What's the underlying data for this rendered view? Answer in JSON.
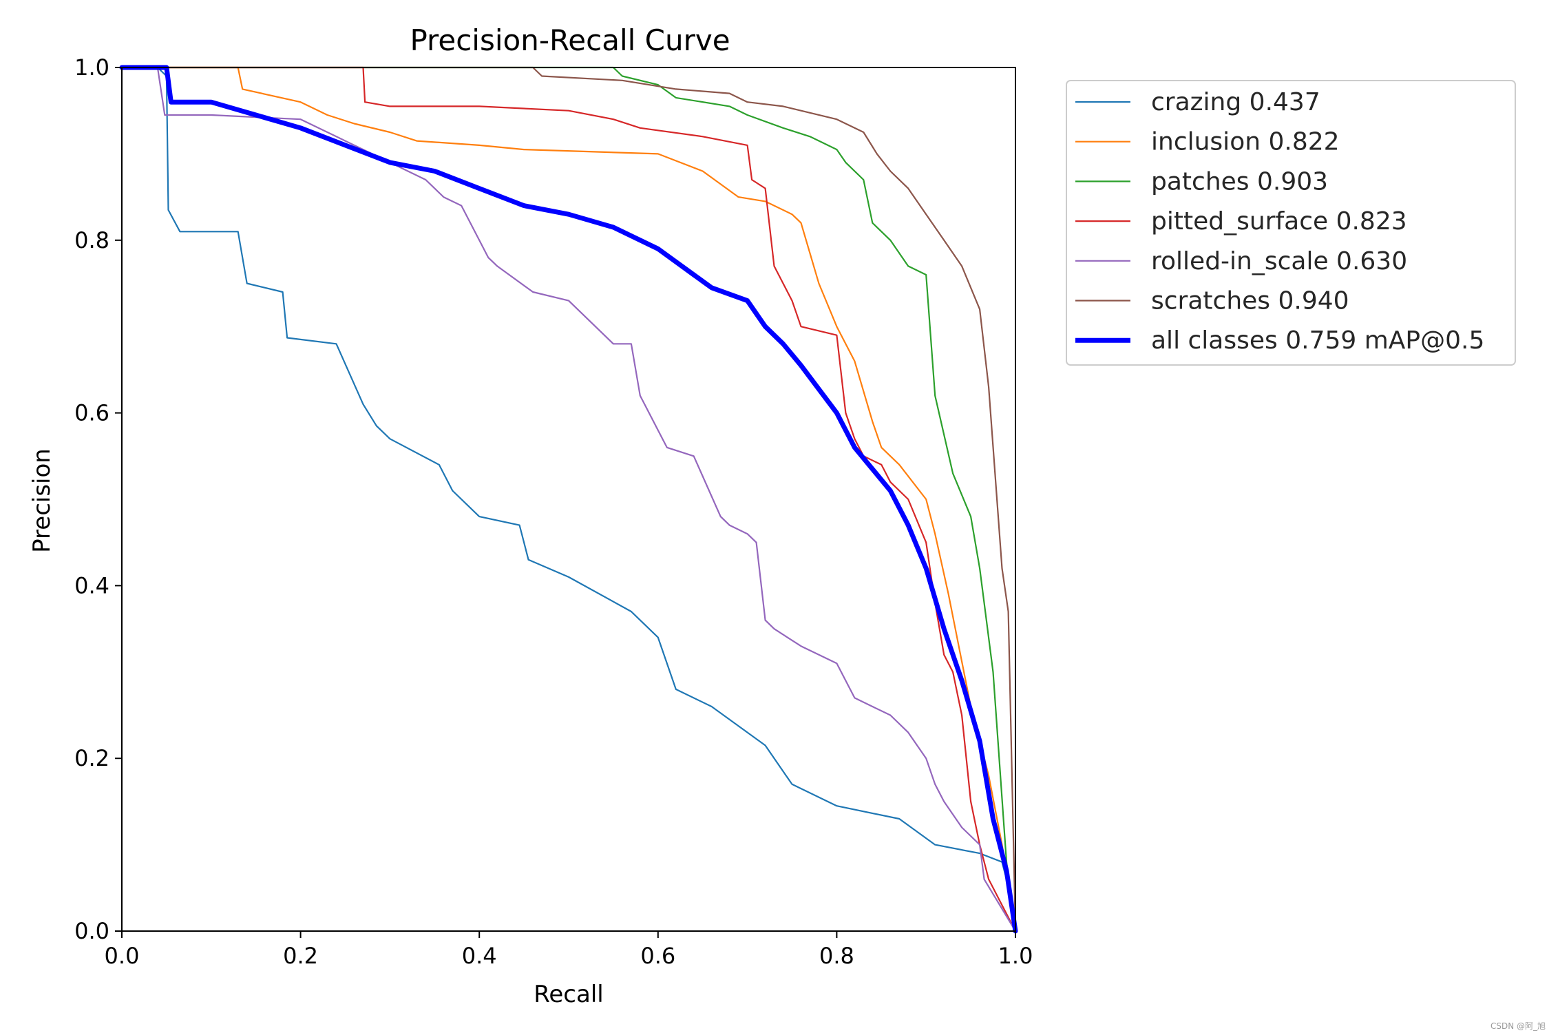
{
  "chart_data": {
    "type": "line",
    "title": "Precision-Recall Curve",
    "xlabel": "Recall",
    "ylabel": "Precision",
    "xlim": [
      0,
      1
    ],
    "ylim": [
      0,
      1
    ],
    "xticks": [
      "0.0",
      "0.2",
      "0.4",
      "0.6",
      "0.8",
      "1.0"
    ],
    "yticks": [
      "0.0",
      "0.2",
      "0.4",
      "0.6",
      "0.8",
      "1.0"
    ],
    "grid": false,
    "legend_position": "outside-top-right",
    "series": [
      {
        "name": "crazing 0.437",
        "color": "#1f77b4",
        "x": [
          0,
          0.04,
          0.05,
          0.052,
          0.065,
          0.13,
          0.14,
          0.18,
          0.185,
          0.24,
          0.27,
          0.285,
          0.3,
          0.355,
          0.37,
          0.4,
          0.445,
          0.455,
          0.5,
          0.57,
          0.6,
          0.62,
          0.66,
          0.72,
          0.75,
          0.8,
          0.87,
          0.91,
          0.96,
          0.985,
          0.995,
          1.0
        ],
        "y": [
          1.0,
          1.0,
          0.99,
          0.835,
          0.81,
          0.81,
          0.75,
          0.74,
          0.687,
          0.68,
          0.61,
          0.585,
          0.57,
          0.54,
          0.51,
          0.48,
          0.47,
          0.43,
          0.41,
          0.37,
          0.34,
          0.28,
          0.26,
          0.215,
          0.17,
          0.145,
          0.13,
          0.1,
          0.09,
          0.08,
          0.04,
          0.0
        ]
      },
      {
        "name": "inclusion 0.822",
        "color": "#ff7f0e",
        "x": [
          0,
          0.13,
          0.135,
          0.2,
          0.23,
          0.26,
          0.3,
          0.33,
          0.4,
          0.45,
          0.6,
          0.65,
          0.69,
          0.72,
          0.75,
          0.76,
          0.78,
          0.8,
          0.82,
          0.84,
          0.85,
          0.87,
          0.9,
          0.91,
          0.925,
          0.95,
          0.97,
          0.985,
          1.0
        ],
        "y": [
          1.0,
          1.0,
          0.975,
          0.96,
          0.945,
          0.935,
          0.925,
          0.915,
          0.91,
          0.905,
          0.9,
          0.88,
          0.85,
          0.845,
          0.83,
          0.82,
          0.75,
          0.7,
          0.66,
          0.59,
          0.56,
          0.54,
          0.5,
          0.46,
          0.39,
          0.26,
          0.18,
          0.1,
          0.0
        ]
      },
      {
        "name": "patches 0.903",
        "color": "#2ca02c",
        "x": [
          0,
          0.55,
          0.56,
          0.6,
          0.62,
          0.68,
          0.7,
          0.74,
          0.77,
          0.8,
          0.81,
          0.83,
          0.84,
          0.86,
          0.88,
          0.9,
          0.91,
          0.93,
          0.95,
          0.96,
          0.975,
          0.99,
          1.0
        ],
        "y": [
          1.0,
          1.0,
          0.99,
          0.98,
          0.965,
          0.955,
          0.945,
          0.93,
          0.92,
          0.905,
          0.89,
          0.87,
          0.82,
          0.8,
          0.77,
          0.76,
          0.62,
          0.53,
          0.48,
          0.42,
          0.3,
          0.08,
          0.0
        ]
      },
      {
        "name": "pitted_surface 0.823",
        "color": "#d62728",
        "x": [
          0,
          0.27,
          0.272,
          0.3,
          0.4,
          0.5,
          0.55,
          0.58,
          0.65,
          0.7,
          0.705,
          0.72,
          0.73,
          0.74,
          0.75,
          0.76,
          0.8,
          0.81,
          0.82,
          0.83,
          0.85,
          0.86,
          0.88,
          0.9,
          0.91,
          0.92,
          0.93,
          0.94,
          0.95,
          0.96,
          0.97,
          0.985,
          1.0
        ],
        "y": [
          1.0,
          1.0,
          0.96,
          0.955,
          0.955,
          0.95,
          0.94,
          0.93,
          0.92,
          0.91,
          0.87,
          0.86,
          0.77,
          0.75,
          0.73,
          0.7,
          0.69,
          0.6,
          0.57,
          0.55,
          0.54,
          0.52,
          0.5,
          0.45,
          0.38,
          0.32,
          0.3,
          0.25,
          0.15,
          0.1,
          0.06,
          0.03,
          0.0
        ]
      },
      {
        "name": "rolled-in_scale 0.630",
        "color": "#9467bd",
        "x": [
          0,
          0.04,
          0.048,
          0.1,
          0.2,
          0.24,
          0.26,
          0.3,
          0.34,
          0.36,
          0.38,
          0.41,
          0.42,
          0.46,
          0.5,
          0.52,
          0.55,
          0.57,
          0.58,
          0.61,
          0.64,
          0.67,
          0.68,
          0.7,
          0.71,
          0.72,
          0.73,
          0.76,
          0.8,
          0.82,
          0.84,
          0.86,
          0.88,
          0.9,
          0.91,
          0.92,
          0.94,
          0.96,
          0.965,
          1.0
        ],
        "y": [
          1.0,
          1.0,
          0.945,
          0.945,
          0.94,
          0.92,
          0.91,
          0.89,
          0.87,
          0.85,
          0.84,
          0.78,
          0.77,
          0.74,
          0.73,
          0.71,
          0.68,
          0.68,
          0.62,
          0.56,
          0.55,
          0.48,
          0.47,
          0.46,
          0.45,
          0.36,
          0.35,
          0.33,
          0.31,
          0.27,
          0.26,
          0.25,
          0.23,
          0.2,
          0.17,
          0.15,
          0.12,
          0.1,
          0.06,
          0.0
        ]
      },
      {
        "name": "scratches 0.940",
        "color": "#8c564b",
        "x": [
          0,
          0.46,
          0.47,
          0.56,
          0.62,
          0.68,
          0.7,
          0.74,
          0.76,
          0.8,
          0.83,
          0.845,
          0.86,
          0.88,
          0.9,
          0.92,
          0.94,
          0.96,
          0.97,
          0.985,
          0.992,
          1.0
        ],
        "y": [
          1.0,
          1.0,
          0.99,
          0.985,
          0.975,
          0.97,
          0.96,
          0.955,
          0.95,
          0.94,
          0.925,
          0.9,
          0.88,
          0.86,
          0.83,
          0.8,
          0.77,
          0.72,
          0.63,
          0.42,
          0.37,
          0.0
        ]
      },
      {
        "name": "all classes 0.759 mAP@0.5",
        "color": "#0000ff",
        "x": [
          0,
          0.05,
          0.055,
          0.1,
          0.15,
          0.2,
          0.25,
          0.3,
          0.35,
          0.4,
          0.45,
          0.5,
          0.55,
          0.6,
          0.64,
          0.66,
          0.7,
          0.72,
          0.74,
          0.76,
          0.8,
          0.82,
          0.84,
          0.86,
          0.88,
          0.9,
          0.92,
          0.94,
          0.96,
          0.975,
          0.99,
          1.0
        ],
        "y": [
          1.0,
          1.0,
          0.96,
          0.96,
          0.945,
          0.93,
          0.91,
          0.89,
          0.88,
          0.86,
          0.84,
          0.83,
          0.815,
          0.79,
          0.76,
          0.745,
          0.73,
          0.7,
          0.68,
          0.655,
          0.6,
          0.56,
          0.535,
          0.51,
          0.47,
          0.42,
          0.35,
          0.29,
          0.22,
          0.13,
          0.07,
          0.0
        ]
      }
    ]
  },
  "watermark": "CSDN @阿_旭"
}
